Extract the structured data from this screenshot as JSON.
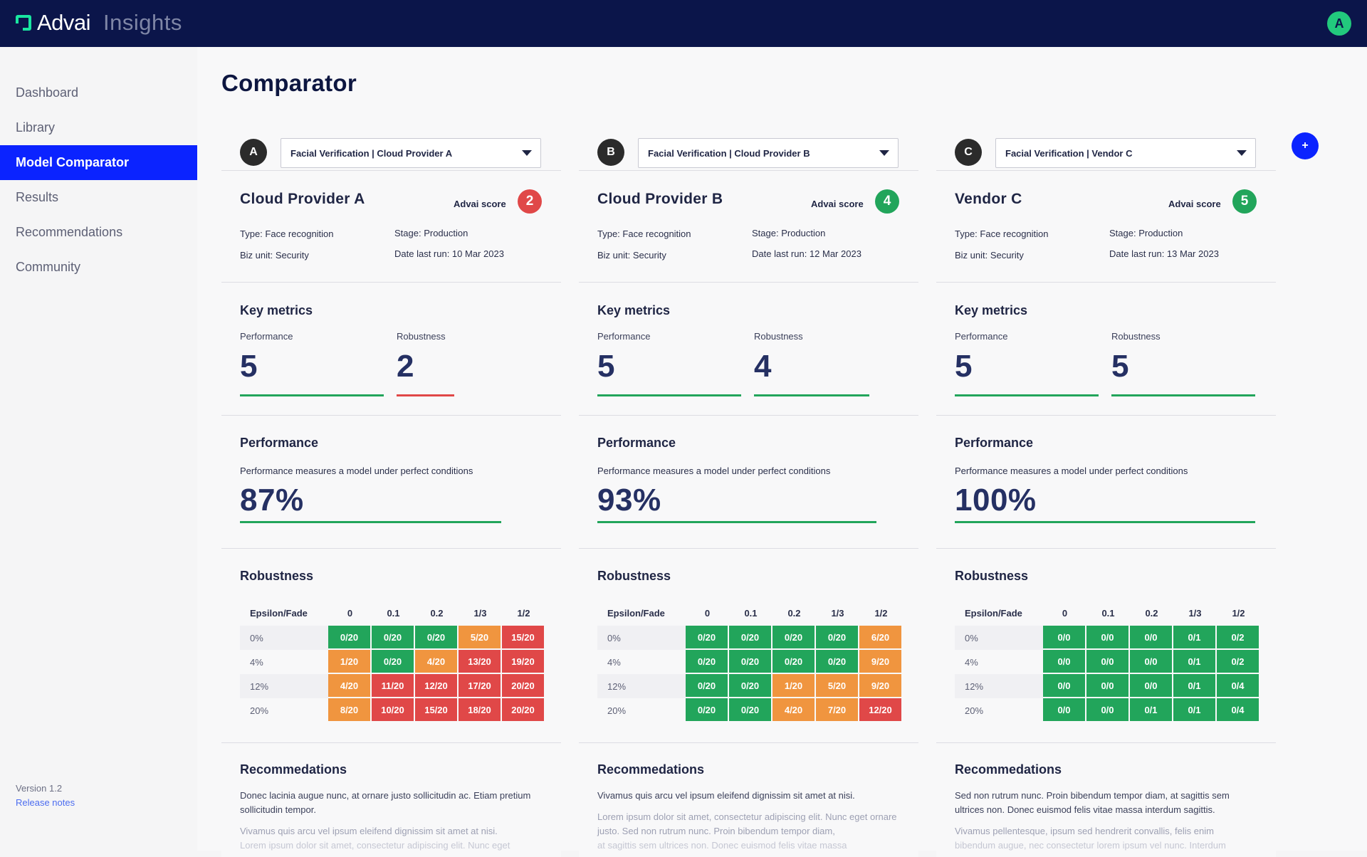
{
  "brand": {
    "name": "Advai",
    "product": "Insights"
  },
  "user": {
    "initial": "A"
  },
  "nav": [
    "Dashboard",
    "Library",
    "Model Comparator",
    "Results",
    "Recommendations",
    "Community"
  ],
  "footer": {
    "version": "Version 1.2",
    "release_notes": "Release notes"
  },
  "page": {
    "title": "Comparator",
    "add_label": "+"
  },
  "colors": {
    "green": "#22a55b",
    "orange": "#f0953f",
    "red": "#e04848",
    "blue": "#0b23ff",
    "navy": "#0b154a"
  },
  "labels": {
    "advai_score": "Advai score",
    "key_metrics": "Key metrics",
    "performance": "Performance",
    "robustness": "Robustness",
    "performance_section": "Performance",
    "performance_desc": "Performance measures a model under perfect conditions",
    "robustness_section": "Robustness",
    "recommendations": "Recommedations",
    "epsilon_fade": "Epsilon/Fade"
  },
  "robustness_columns": [
    "0",
    "0.1",
    "0.2",
    "1/3",
    "1/2"
  ],
  "robustness_rows": [
    "0%",
    "4%",
    "12%",
    "20%"
  ],
  "models": [
    {
      "letter": "A",
      "select": "Facial Verification | Cloud Provider A",
      "name": "Cloud Provider A",
      "score": "2",
      "score_color": "red",
      "type": "Type: Face recognition",
      "biz_unit": "Biz unit: Security",
      "stage": "Stage: Production",
      "date": "Date last run: 10 Mar 2023",
      "performance_metric": "5",
      "performance_metric_level": 1.0,
      "robustness_metric": "2",
      "robustness_metric_level": 0.4,
      "robustness_metric_color": "red",
      "performance_pct": "87%",
      "performance_fraction": 0.87,
      "grid": [
        [
          [
            "0/20",
            "green"
          ],
          [
            "0/20",
            "green"
          ],
          [
            "0/20",
            "green"
          ],
          [
            "5/20",
            "orange"
          ],
          [
            "15/20",
            "red"
          ]
        ],
        [
          [
            "1/20",
            "orange"
          ],
          [
            "0/20",
            "green"
          ],
          [
            "4/20",
            "orange"
          ],
          [
            "13/20",
            "red"
          ],
          [
            "19/20",
            "red"
          ]
        ],
        [
          [
            "4/20",
            "orange"
          ],
          [
            "11/20",
            "red"
          ],
          [
            "12/20",
            "red"
          ],
          [
            "17/20",
            "red"
          ],
          [
            "20/20",
            "red"
          ]
        ],
        [
          [
            "8/20",
            "orange"
          ],
          [
            "10/20",
            "red"
          ],
          [
            "15/20",
            "red"
          ],
          [
            "18/20",
            "red"
          ],
          [
            "20/20",
            "red"
          ]
        ]
      ],
      "rec_1": "Donec lacinia augue nunc, at ornare justo sollicitudin ac. Etiam pretium sollicitudin tempor.",
      "rec_2": "Vivamus quis arcu vel ipsum eleifend dignissim sit amet at nisi.",
      "rec_3": "Lorem ipsum dolor sit amet, consectetur adipiscing elit. Nunc eget"
    },
    {
      "letter": "B",
      "select": "Facial Verification | Cloud Provider B",
      "name": "Cloud Provider B",
      "score": "4",
      "score_color": "green",
      "type": "Type: Face recognition",
      "biz_unit": "Biz unit: Security",
      "stage": "Stage: Production",
      "date": "Date last run: 12 Mar 2023",
      "performance_metric": "5",
      "performance_metric_level": 1.0,
      "robustness_metric": "4",
      "robustness_metric_level": 0.8,
      "robustness_metric_color": "green",
      "performance_pct": "93%",
      "performance_fraction": 0.93,
      "grid": [
        [
          [
            "0/20",
            "green"
          ],
          [
            "0/20",
            "green"
          ],
          [
            "0/20",
            "green"
          ],
          [
            "0/20",
            "green"
          ],
          [
            "6/20",
            "orange"
          ]
        ],
        [
          [
            "0/20",
            "green"
          ],
          [
            "0/20",
            "green"
          ],
          [
            "0/20",
            "green"
          ],
          [
            "0/20",
            "green"
          ],
          [
            "9/20",
            "orange"
          ]
        ],
        [
          [
            "0/20",
            "green"
          ],
          [
            "0/20",
            "green"
          ],
          [
            "1/20",
            "orange"
          ],
          [
            "5/20",
            "orange"
          ],
          [
            "9/20",
            "orange"
          ]
        ],
        [
          [
            "0/20",
            "green"
          ],
          [
            "0/20",
            "green"
          ],
          [
            "4/20",
            "orange"
          ],
          [
            "7/20",
            "orange"
          ],
          [
            "12/20",
            "red"
          ]
        ]
      ],
      "rec_1": "Vivamus quis arcu vel ipsum eleifend dignissim sit amet at nisi.",
      "rec_2": "Lorem ipsum dolor sit amet, consectetur adipiscing elit. Nunc eget ornare justo. Sed non rutrum nunc. Proin bibendum tempor diam,",
      "rec_3": "at sagittis sem ultrices non. Donec euismod felis vitae massa"
    },
    {
      "letter": "C",
      "select": "Facial Verification | Vendor C",
      "name": "Vendor C",
      "score": "5",
      "score_color": "green",
      "type": "Type: Face recognition",
      "biz_unit": "Biz unit: Security",
      "stage": "Stage: Production",
      "date": "Date last run: 13 Mar 2023",
      "performance_metric": "5",
      "performance_metric_level": 1.0,
      "robustness_metric": "5",
      "robustness_metric_level": 1.0,
      "robustness_metric_color": "green",
      "performance_pct": "100%",
      "performance_fraction": 1.0,
      "grid": [
        [
          [
            "0/0",
            "green"
          ],
          [
            "0/0",
            "green"
          ],
          [
            "0/0",
            "green"
          ],
          [
            "0/1",
            "green"
          ],
          [
            "0/2",
            "green"
          ]
        ],
        [
          [
            "0/0",
            "green"
          ],
          [
            "0/0",
            "green"
          ],
          [
            "0/0",
            "green"
          ],
          [
            "0/1",
            "green"
          ],
          [
            "0/2",
            "green"
          ]
        ],
        [
          [
            "0/0",
            "green"
          ],
          [
            "0/0",
            "green"
          ],
          [
            "0/0",
            "green"
          ],
          [
            "0/1",
            "green"
          ],
          [
            "0/4",
            "green"
          ]
        ],
        [
          [
            "0/0",
            "green"
          ],
          [
            "0/0",
            "green"
          ],
          [
            "0/1",
            "green"
          ],
          [
            "0/1",
            "green"
          ],
          [
            "0/4",
            "green"
          ]
        ]
      ],
      "rec_1": "Sed non rutrum nunc. Proin bibendum tempor diam, at sagittis sem ultrices non. Donec euismod felis vitae massa interdum sagittis.",
      "rec_2": "Vivamus pellentesque, ipsum sed hendrerit convallis, felis enim",
      "rec_3": "bibendum augue, nec consectetur lorem ipsum vel nunc. Interdum"
    }
  ]
}
